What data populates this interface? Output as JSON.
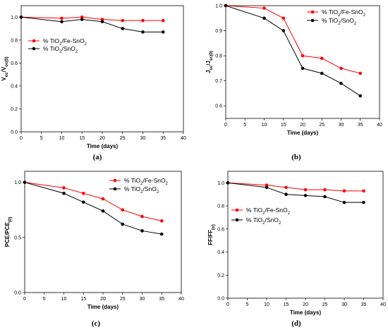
{
  "chart_data": [
    {
      "id": "a",
      "type": "line",
      "panel_label": "(a)",
      "xlabel": "Time (days)",
      "ylabel": "Voc/Voc(0)",
      "xlim": [
        0,
        40
      ],
      "ylim": [
        0,
        1.1
      ],
      "xticks": [
        0,
        5,
        10,
        15,
        20,
        25,
        30,
        35,
        40
      ],
      "yticks": [
        0,
        0.2,
        0.4,
        0.6,
        0.8,
        1.0
      ],
      "ytick_labels": [
        "0.0",
        "0.2",
        "0.4",
        "0.6",
        "0.8",
        "1.0"
      ],
      "legend_position": "middle-left",
      "series": [
        {
          "name": "% TiO2/Fe-SnO2",
          "color": "#ff0000",
          "x": [
            0,
            10,
            15,
            20,
            25,
            30,
            35
          ],
          "y": [
            1.0,
            0.99,
            1.0,
            0.98,
            0.97,
            0.97,
            0.97
          ]
        },
        {
          "name": "% TiO2/SnO2",
          "color": "#000000",
          "x": [
            0,
            10,
            15,
            20,
            25,
            30,
            35
          ],
          "y": [
            1.0,
            0.96,
            0.98,
            0.96,
            0.9,
            0.87,
            0.87
          ]
        }
      ]
    },
    {
      "id": "b",
      "type": "line",
      "panel_label": "(b)",
      "xlabel": "Time (days)",
      "ylabel": "Jsc/Jsc(0)",
      "xlim": [
        0,
        40
      ],
      "ylim": [
        0.55,
        1.0
      ],
      "xticks": [
        0,
        5,
        10,
        15,
        20,
        25,
        30,
        35,
        40
      ],
      "yticks": [
        0.6,
        0.7,
        0.8,
        0.9,
        1.0
      ],
      "ytick_labels": [
        "0.6",
        "0.7",
        "0.8",
        "0.9",
        "1.0"
      ],
      "legend_position": "top-right",
      "series": [
        {
          "name": "% TiO2/Fe-SnO2",
          "color": "#ff0000",
          "x": [
            0,
            10,
            15,
            20,
            25,
            30,
            35
          ],
          "y": [
            1.0,
            0.99,
            0.95,
            0.8,
            0.79,
            0.75,
            0.73
          ]
        },
        {
          "name": "% TiO2/SnO2",
          "color": "#000000",
          "x": [
            0,
            10,
            15,
            20,
            25,
            30,
            35
          ],
          "y": [
            1.0,
            0.95,
            0.9,
            0.75,
            0.73,
            0.69,
            0.64
          ]
        }
      ]
    },
    {
      "id": "c",
      "type": "line",
      "panel_label": "(c)",
      "xlabel": "Time (days)",
      "ylabel": "PCE/PCE(0)",
      "xlim": [
        0,
        40
      ],
      "ylim": [
        0,
        1.1
      ],
      "xticks": [
        0,
        5,
        10,
        15,
        20,
        25,
        30,
        35,
        40
      ],
      "yticks": [
        0,
        0.5,
        1.0
      ],
      "ytick_labels": [
        "0.0",
        "0.5",
        "1.0"
      ],
      "legend_position": "top-right",
      "series": [
        {
          "name": "% TiO2/Fe-SnO2",
          "color": "#ff0000",
          "x": [
            0,
            10,
            15,
            20,
            25,
            30,
            35
          ],
          "y": [
            1.0,
            0.95,
            0.9,
            0.85,
            0.75,
            0.69,
            0.65
          ]
        },
        {
          "name": "% TiO2/SnO2",
          "color": "#000000",
          "x": [
            0,
            10,
            15,
            20,
            25,
            30,
            35
          ],
          "y": [
            1.0,
            0.9,
            0.82,
            0.74,
            0.62,
            0.56,
            0.53
          ]
        }
      ]
    },
    {
      "id": "d",
      "type": "line",
      "panel_label": "(d)",
      "xlabel": "Time (days)",
      "ylabel": "FF/FF(o)",
      "xlim": [
        0,
        40
      ],
      "ylim": [
        0,
        1.1
      ],
      "xticks": [
        0,
        5,
        10,
        15,
        20,
        25,
        30,
        35,
        40
      ],
      "yticks": [
        0,
        0.2,
        0.4,
        0.6,
        0.8,
        1.0
      ],
      "ytick_labels": [
        "0.0",
        "0.2",
        "0.4",
        "0.6",
        "0.8",
        "1.0"
      ],
      "legend_position": "middle-left",
      "series": [
        {
          "name": "% TiO2/Fe-SnO2",
          "color": "#ff0000",
          "x": [
            0,
            10,
            15,
            20,
            25,
            30,
            35
          ],
          "y": [
            1.0,
            0.98,
            0.96,
            0.94,
            0.94,
            0.93,
            0.93
          ]
        },
        {
          "name": "% TiO2/SnO2",
          "color": "#000000",
          "x": [
            0,
            10,
            15,
            20,
            25,
            30,
            35
          ],
          "y": [
            1.0,
            0.96,
            0.9,
            0.89,
            0.88,
            0.83,
            0.83
          ]
        }
      ]
    }
  ]
}
